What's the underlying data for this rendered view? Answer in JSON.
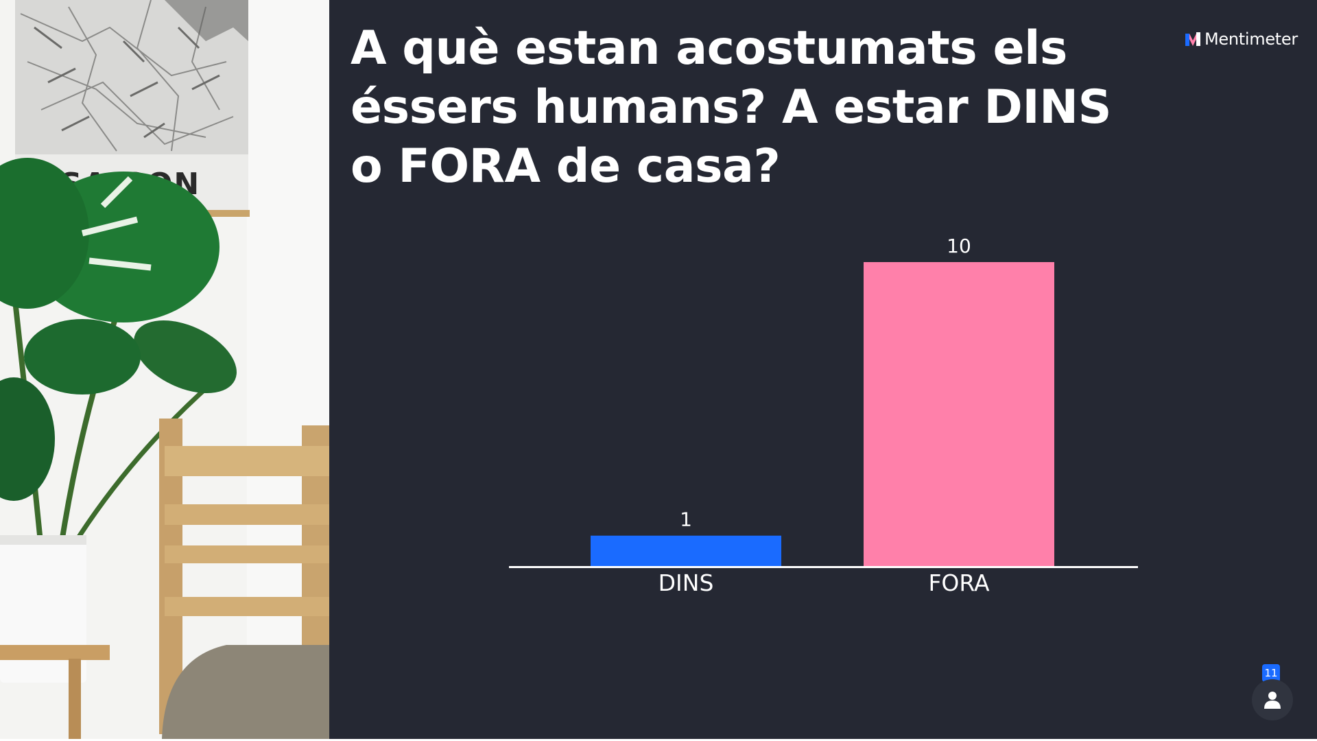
{
  "slide": {
    "question": "A què estan acostumats els éssers humans? A estar DINS o FORA de casa?"
  },
  "brand": {
    "name": "Mentimeter",
    "icon": "mentimeter-logo-icon"
  },
  "poster": {
    "caption": "SAIGON"
  },
  "participants": {
    "count": "11",
    "icon": "person-icon"
  },
  "colors": {
    "background": "#252833",
    "dins": "#1a6bff",
    "fora": "#ff80aa",
    "baseline": "#ffffff"
  },
  "chart_data": {
    "type": "bar",
    "categories": [
      "DINS",
      "FORA"
    ],
    "values": [
      1,
      10
    ],
    "data_labels": [
      "1",
      "10"
    ],
    "colors": [
      "#1a6bff",
      "#ff80aa"
    ],
    "ylim": [
      0,
      10
    ],
    "grid": false,
    "legend": "none"
  }
}
